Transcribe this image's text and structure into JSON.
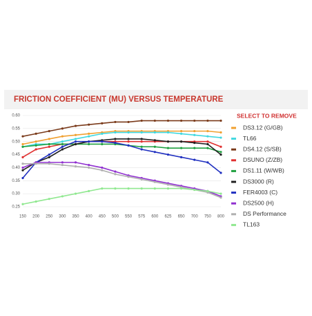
{
  "chart_data": {
    "type": "line",
    "title": "FRICTION COEFFICIENT (MU) VERSUS TEMPERATURE",
    "legend_title": "SELECT TO REMOVE",
    "categories": [
      "150",
      "200",
      "250",
      "300",
      "350",
      "400",
      "450",
      "500",
      "550",
      "575",
      "600",
      "625",
      "650",
      "700",
      "750",
      "800"
    ],
    "ylim": [
      0.25,
      0.6
    ],
    "yticks": [
      {
        "value": 0.25,
        "label": "0.25"
      },
      {
        "value": 0.3,
        "label": "0.30"
      },
      {
        "value": 0.35,
        "label": "0.35"
      },
      {
        "value": 0.4,
        "label": "0.40"
      },
      {
        "value": 0.45,
        "label": "0.45"
      },
      {
        "value": 0.5,
        "label": "0.50"
      },
      {
        "value": 0.55,
        "label": "0.55"
      },
      {
        "value": 0.6,
        "label": "0.60"
      }
    ],
    "grid": true,
    "legend": "right",
    "series": [
      {
        "name": "DS3.12 (G/GB)",
        "color": "#f0a030",
        "values": [
          0.49,
          0.5,
          0.51,
          0.52,
          0.525,
          0.53,
          0.535,
          0.54,
          0.54,
          0.54,
          0.54,
          0.54,
          0.54,
          0.54,
          0.54,
          0.535
        ]
      },
      {
        "name": "TL66",
        "color": "#40d8e0",
        "values": [
          0.48,
          0.49,
          0.49,
          0.5,
          0.51,
          0.52,
          0.53,
          0.535,
          0.535,
          0.535,
          0.535,
          0.535,
          0.53,
          0.525,
          0.52,
          0.515
        ]
      },
      {
        "name": "DS4.12 (S/SB)",
        "color": "#7a3a1a",
        "values": [
          0.52,
          0.53,
          0.54,
          0.55,
          0.56,
          0.565,
          0.57,
          0.575,
          0.575,
          0.58,
          0.58,
          0.58,
          0.58,
          0.58,
          0.58,
          0.58
        ]
      },
      {
        "name": "DSUNO (Z/ZB)",
        "color": "#e03030",
        "values": [
          0.44,
          0.47,
          0.48,
          0.49,
          0.49,
          0.5,
          0.5,
          0.5,
          0.5,
          0.5,
          0.5,
          0.5,
          0.5,
          0.5,
          0.5,
          0.48
        ]
      },
      {
        "name": "DS1.11 (W/WB)",
        "color": "#20a040",
        "values": [
          0.48,
          0.485,
          0.49,
          0.49,
          0.49,
          0.49,
          0.49,
          0.49,
          0.485,
          0.48,
          0.48,
          0.475,
          0.475,
          0.475,
          0.475,
          0.46
        ]
      },
      {
        "name": "DS3000 (R)",
        "color": "#202020",
        "values": [
          0.39,
          0.42,
          0.44,
          0.47,
          0.49,
          0.5,
          0.505,
          0.51,
          0.51,
          0.51,
          0.505,
          0.5,
          0.5,
          0.495,
          0.49,
          0.45
        ]
      },
      {
        "name": "FER4003 (C)",
        "color": "#2030c0",
        "values": [
          0.36,
          0.42,
          0.45,
          0.48,
          0.5,
          0.5,
          0.5,
          0.495,
          0.485,
          0.47,
          0.46,
          0.45,
          0.44,
          0.43,
          0.42,
          0.38
        ]
      },
      {
        "name": "DS2500 (H)",
        "color": "#9030d0",
        "values": [
          0.4,
          0.42,
          0.42,
          0.42,
          0.42,
          0.41,
          0.4,
          0.385,
          0.37,
          0.36,
          0.35,
          0.34,
          0.33,
          0.32,
          0.31,
          0.29
        ]
      },
      {
        "name": "DS Performance",
        "color": "#b0b0b0",
        "values": [
          0.415,
          0.415,
          0.415,
          0.41,
          0.405,
          0.4,
          0.39,
          0.375,
          0.365,
          0.355,
          0.345,
          0.335,
          0.325,
          0.315,
          0.305,
          0.285
        ]
      },
      {
        "name": "TL163",
        "color": "#90e890",
        "values": [
          0.26,
          0.27,
          0.28,
          0.29,
          0.3,
          0.31,
          0.32,
          0.32,
          0.32,
          0.32,
          0.32,
          0.32,
          0.32,
          0.315,
          0.31,
          0.3
        ]
      }
    ]
  }
}
